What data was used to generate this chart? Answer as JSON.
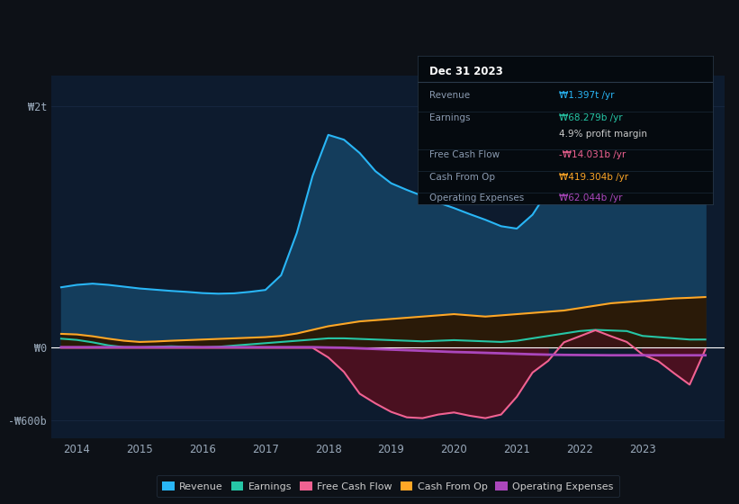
{
  "background_color": "#0d1117",
  "plot_bg_color": "#0d1b2e",
  "grid_color": "#1e3050",
  "years": [
    2013.75,
    2014,
    2014.25,
    2014.5,
    2014.75,
    2015,
    2015.25,
    2015.5,
    2015.75,
    2016,
    2016.25,
    2016.5,
    2016.75,
    2017,
    2017.25,
    2017.5,
    2017.75,
    2018,
    2018.25,
    2018.5,
    2018.75,
    2019,
    2019.25,
    2019.5,
    2019.75,
    2020,
    2020.25,
    2020.5,
    2020.75,
    2021,
    2021.25,
    2021.5,
    2021.75,
    2022,
    2022.25,
    2022.5,
    2022.75,
    2023,
    2023.25,
    2023.5,
    2023.75,
    2024.0
  ],
  "revenue": [
    500,
    520,
    530,
    520,
    505,
    490,
    480,
    470,
    462,
    452,
    447,
    450,
    462,
    478,
    600,
    950,
    1420,
    1760,
    1720,
    1610,
    1460,
    1360,
    1305,
    1255,
    1200,
    1155,
    1105,
    1058,
    1005,
    985,
    1100,
    1300,
    1520,
    1760,
    1910,
    2010,
    2060,
    1960,
    1860,
    1760,
    1620,
    1397
  ],
  "earnings": [
    75,
    65,
    45,
    20,
    5,
    3,
    8,
    12,
    8,
    3,
    8,
    18,
    28,
    38,
    48,
    58,
    68,
    78,
    78,
    73,
    68,
    63,
    58,
    53,
    58,
    63,
    58,
    53,
    48,
    58,
    78,
    98,
    118,
    138,
    148,
    143,
    138,
    98,
    88,
    78,
    68,
    68.279
  ],
  "free_cash_flow": [
    0,
    0,
    0,
    0,
    0,
    0,
    0,
    0,
    0,
    0,
    0,
    0,
    0,
    0,
    0,
    0,
    0,
    -80,
    -200,
    -380,
    -460,
    -530,
    -575,
    -582,
    -552,
    -535,
    -562,
    -582,
    -552,
    -405,
    -205,
    -108,
    45,
    95,
    145,
    95,
    48,
    -55,
    -110,
    -210,
    -305,
    -14.031
  ],
  "cash_from_op": [
    115,
    110,
    95,
    75,
    58,
    48,
    52,
    58,
    63,
    68,
    73,
    78,
    83,
    88,
    98,
    118,
    148,
    178,
    198,
    218,
    228,
    238,
    248,
    258,
    268,
    278,
    268,
    258,
    268,
    278,
    288,
    298,
    308,
    328,
    348,
    368,
    378,
    388,
    398,
    408,
    413,
    419.304
  ],
  "operating_expenses": [
    5,
    5,
    5,
    5,
    5,
    5,
    5,
    5,
    5,
    5,
    5,
    5,
    5,
    5,
    5,
    5,
    5,
    2,
    0,
    -5,
    -10,
    -15,
    -20,
    -25,
    -30,
    -35,
    -38,
    -42,
    -46,
    -50,
    -54,
    -57,
    -59,
    -60,
    -61,
    -62,
    -62,
    -62.044,
    -62.044,
    -62.044,
    -62.044,
    -62.044
  ],
  "revenue_color": "#29b6f6",
  "revenue_fill": "#143d5c",
  "earnings_color": "#26c6a6",
  "earnings_fill": "#0d2d28",
  "free_cash_flow_color": "#f06292",
  "free_cash_flow_fill": "#4a1020",
  "cash_from_op_color": "#ffa726",
  "cash_from_op_fill": "#2a1a08",
  "operating_expenses_color": "#ab47bc",
  "ylim_min": -750,
  "ylim_max": 2250,
  "xlim_min": 2013.6,
  "xlim_max": 2024.3,
  "yticks": [
    -600,
    0,
    2000
  ],
  "ytick_labels": [
    "-₩600b",
    "₩0",
    "₩2t"
  ],
  "xticks": [
    2014,
    2015,
    2016,
    2017,
    2018,
    2019,
    2020,
    2021,
    2022,
    2023
  ],
  "legend_items": [
    "Revenue",
    "Earnings",
    "Free Cash Flow",
    "Cash From Op",
    "Operating Expenses"
  ],
  "legend_colors": [
    "#29b6f6",
    "#26c6a6",
    "#f06292",
    "#ffa726",
    "#ab47bc"
  ],
  "infobox_title": "Dec 31 2023",
  "infobox_rows": [
    {
      "label": "Revenue",
      "value": "₩1.397t /yr",
      "value_color": "#29b6f6"
    },
    {
      "label": "Earnings",
      "value": "₩68.279b /yr",
      "value_color": "#26c6a6"
    },
    {
      "label": "",
      "value": "4.9% profit margin",
      "value_color": "#cccccc"
    },
    {
      "label": "Free Cash Flow",
      "value": "-₩14.031b /yr",
      "value_color": "#f06292"
    },
    {
      "label": "Cash From Op",
      "value": "₩419.304b /yr",
      "value_color": "#ffa726"
    },
    {
      "label": "Operating Expenses",
      "value": "₩62.044b /yr",
      "value_color": "#ab47bc"
    }
  ]
}
